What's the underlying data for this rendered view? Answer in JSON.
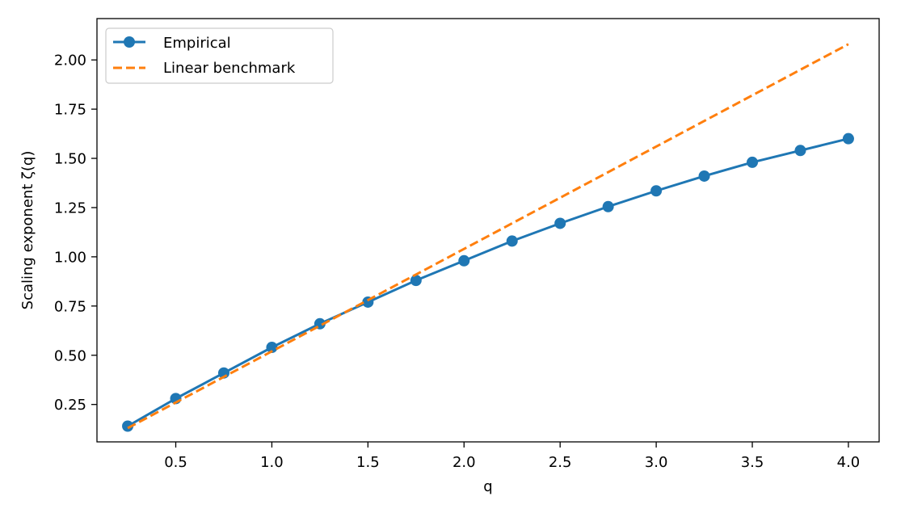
{
  "chart_data": {
    "type": "line",
    "xlabel": "q",
    "ylabel": "Scaling exponent ζ(q)",
    "xlim": [
      0.09,
      4.16
    ],
    "ylim": [
      0.06,
      2.21
    ],
    "xticks": [
      0.5,
      1.0,
      1.5,
      2.0,
      2.5,
      3.0,
      3.5,
      4.0
    ],
    "xtick_labels": [
      "0.5",
      "1.0",
      "1.5",
      "2.0",
      "2.5",
      "3.0",
      "3.5",
      "4.0"
    ],
    "yticks": [
      0.25,
      0.5,
      0.75,
      1.0,
      1.25,
      1.5,
      1.75,
      2.0
    ],
    "ytick_labels": [
      "0.25",
      "0.50",
      "0.75",
      "1.00",
      "1.25",
      "1.50",
      "1.75",
      "2.00"
    ],
    "grid": false,
    "legend_position": "top-left",
    "series": [
      {
        "name": "Empirical",
        "style": "solid-marker",
        "color": "#1f77b4",
        "x": [
          0.25,
          0.5,
          0.75,
          1.0,
          1.25,
          1.5,
          1.75,
          2.0,
          2.25,
          2.5,
          2.75,
          3.0,
          3.25,
          3.5,
          3.75,
          4.0
        ],
        "y": [
          0.14,
          0.28,
          0.41,
          0.54,
          0.66,
          0.77,
          0.88,
          0.98,
          1.08,
          1.17,
          1.255,
          1.335,
          1.41,
          1.48,
          1.54,
          1.6
        ]
      },
      {
        "name": "Linear benchmark",
        "style": "dashed",
        "color": "#ff7f0e",
        "x": [
          0.25,
          4.0
        ],
        "y": [
          0.13,
          2.08
        ]
      }
    ]
  }
}
